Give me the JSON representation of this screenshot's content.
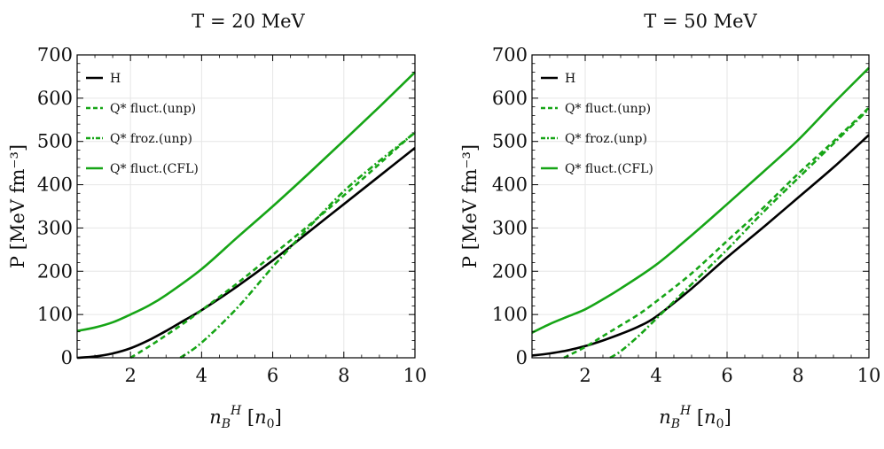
{
  "figure": {
    "panels": [
      {
        "title": "T = 20 MeV",
        "ylabel": "P [MeV fm⁻³]",
        "xlabel": "n_B^H [n₀]"
      },
      {
        "title": "T = 50 MeV",
        "ylabel": "P [MeV fm⁻³]",
        "xlabel": "n_B^H [n₀]"
      }
    ]
  },
  "colors": {
    "hadronic": "#000000",
    "quark": "#16a516",
    "grid": "#e6e6e6"
  },
  "chart_data": [
    {
      "type": "line",
      "title": "T = 20 MeV",
      "xlabel": "n_B^H [n0]",
      "ylabel": "P [MeV fm^-3]",
      "xlim": [
        0.5,
        10
      ],
      "ylim": [
        0,
        700
      ],
      "xticks": [
        "2",
        "4",
        "6",
        "8",
        "10"
      ],
      "yticks": [
        "0",
        "100",
        "200",
        "300",
        "400",
        "500",
        "600",
        "700"
      ],
      "grid": true,
      "legend_position": "top-left",
      "series": [
        {
          "name": "H",
          "style": "solid",
          "color": "hadronic",
          "x": [
            0.5,
            1,
            1.5,
            2,
            2.5,
            3,
            3.5,
            4,
            5,
            6,
            7,
            8,
            9,
            10
          ],
          "y": [
            0,
            3,
            10,
            22,
            40,
            62,
            86,
            110,
            165,
            225,
            290,
            355,
            420,
            485
          ]
        },
        {
          "name": "Q* fluct.(unp)",
          "style": "dashed",
          "color": "quark",
          "x": [
            2,
            2.5,
            3,
            3.5,
            4,
            5,
            6,
            7,
            8,
            9,
            10
          ],
          "y": [
            0,
            25,
            52,
            80,
            110,
            172,
            238,
            305,
            375,
            448,
            522
          ]
        },
        {
          "name": "Q* froz.(unp)",
          "style": "dashdot",
          "color": "quark",
          "x": [
            3.4,
            4,
            5,
            6,
            7,
            8,
            9,
            10
          ],
          "y": [
            0,
            35,
            115,
            210,
            300,
            385,
            455,
            520
          ]
        },
        {
          "name": "Q* fluct.(CFL)",
          "style": "solid",
          "color": "quark",
          "x": [
            0.5,
            1,
            1.5,
            2,
            2.5,
            3,
            4,
            5,
            6,
            7,
            8,
            9,
            10
          ],
          "y": [
            62,
            70,
            82,
            100,
            120,
            145,
            205,
            278,
            350,
            425,
            502,
            580,
            660
          ]
        }
      ]
    },
    {
      "type": "line",
      "title": "T = 50 MeV",
      "xlabel": "n_B^H [n0]",
      "ylabel": "P [MeV fm^-3]",
      "xlim": [
        0.5,
        10
      ],
      "ylim": [
        0,
        700
      ],
      "xticks": [
        "2",
        "4",
        "6",
        "8",
        "10"
      ],
      "yticks": [
        "0",
        "100",
        "200",
        "300",
        "400",
        "500",
        "600",
        "700"
      ],
      "grid": true,
      "legend_position": "top-left",
      "series": [
        {
          "name": "H",
          "style": "solid",
          "color": "hadronic",
          "x": [
            0.5,
            1,
            1.5,
            2,
            2.5,
            3,
            3.5,
            4,
            5,
            6,
            7,
            8,
            9,
            10
          ],
          "y": [
            5,
            10,
            17,
            27,
            40,
            55,
            72,
            95,
            160,
            232,
            300,
            370,
            440,
            515
          ]
        },
        {
          "name": "Q* fluct.(unp)",
          "style": "dashed",
          "color": "quark",
          "x": [
            1.4,
            2,
            2.5,
            3,
            3.5,
            4,
            5,
            6,
            7,
            8,
            9,
            10
          ],
          "y": [
            0,
            25,
            50,
            75,
            100,
            130,
            195,
            270,
            345,
            425,
            500,
            578
          ]
        },
        {
          "name": "Q* froz.(unp)",
          "style": "dashdot",
          "color": "quark",
          "x": [
            2.7,
            3,
            3.5,
            4,
            5,
            6,
            7,
            8,
            9,
            10
          ],
          "y": [
            0,
            15,
            50,
            90,
            170,
            250,
            335,
            415,
            495,
            575
          ]
        },
        {
          "name": "Q* fluct.(CFL)",
          "style": "solid",
          "color": "quark",
          "x": [
            0.5,
            1,
            1.5,
            2,
            2.5,
            3,
            4,
            5,
            6,
            7,
            8,
            9,
            10
          ],
          "y": [
            58,
            78,
            95,
            112,
            135,
            160,
            215,
            283,
            355,
            428,
            503,
            588,
            670
          ]
        }
      ]
    }
  ]
}
